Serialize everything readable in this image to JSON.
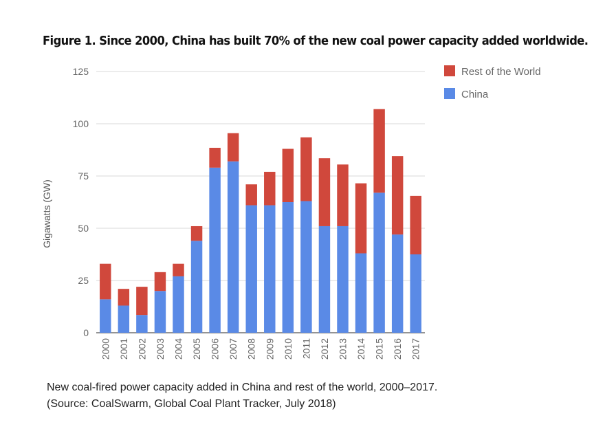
{
  "header": {
    "title": "Figure 1. Since 2000, China has built 70% of the new coal power capacity added worldwide."
  },
  "caption": {
    "line1": "New coal-fired power capacity added in China and rest of the world, 2000–2017.",
    "line2": "(Source: CoalSwarm, Global Coal Plant Tracker, July 2018)"
  },
  "chart_data": {
    "type": "bar",
    "stacked": true,
    "categories": [
      "2000",
      "2001",
      "2002",
      "2003",
      "2004",
      "2005",
      "2006",
      "2007",
      "2008",
      "2009",
      "2010",
      "2011",
      "2012",
      "2013",
      "2014",
      "2015",
      "2016",
      "2017"
    ],
    "series": [
      {
        "name": "China",
        "color": "#5a8ae6",
        "values": [
          16,
          13,
          8.5,
          20,
          27,
          44,
          79,
          82,
          61,
          61,
          62.5,
          63,
          51,
          51,
          38,
          67,
          47,
          37.5
        ]
      },
      {
        "name": "Rest of the World",
        "color": "#d0483c",
        "values": [
          17,
          8,
          13.5,
          9,
          6,
          7,
          9.5,
          13.5,
          10,
          16,
          25.5,
          30.5,
          32.5,
          29.5,
          33.5,
          40,
          37.5,
          28
        ]
      }
    ],
    "legend_order": [
      "Rest of the World",
      "China"
    ],
    "legend_position": "right",
    "ylabel": "Gigawatts (GW)",
    "xlabel": "",
    "ylim": [
      0,
      125
    ],
    "yticks": [
      0,
      25,
      50,
      75,
      100,
      125
    ],
    "grid": true
  }
}
